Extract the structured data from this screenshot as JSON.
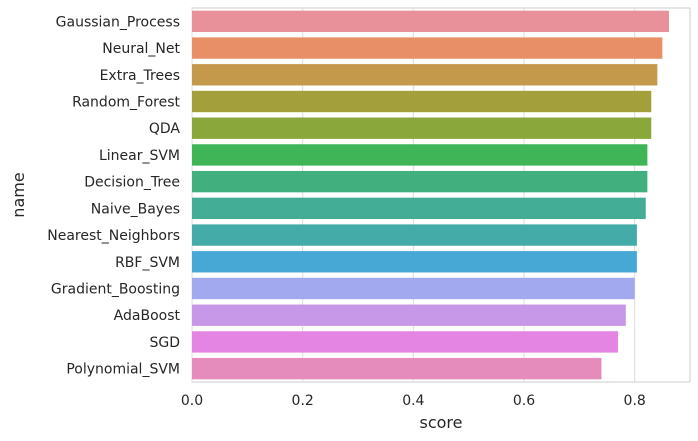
{
  "chart_data": {
    "type": "bar",
    "orientation": "horizontal",
    "title": "",
    "xlabel": "score",
    "ylabel": "name",
    "xlim": [
      0,
      0.9
    ],
    "xticks": [
      0.0,
      0.2,
      0.4,
      0.6,
      0.8
    ],
    "xtick_labels": [
      "0.0",
      "0.2",
      "0.4",
      "0.6",
      "0.8"
    ],
    "grid": true,
    "categories": [
      "Gaussian_Process",
      "Neural_Net",
      "Extra_Trees",
      "Random_Forest",
      "QDA",
      "Linear_SVM",
      "Decision_Tree",
      "Naive_Bayes",
      "Nearest_Neighbors",
      "RBF_SVM",
      "Gradient_Boosting",
      "AdaBoost",
      "SGD",
      "Polynomial_SVM"
    ],
    "values": [
      0.862,
      0.85,
      0.841,
      0.83,
      0.83,
      0.823,
      0.823,
      0.82,
      0.804,
      0.804,
      0.8,
      0.784,
      0.77,
      0.74
    ],
    "colors": [
      "#e8919b",
      "#e88f68",
      "#c5994b",
      "#a3a03c",
      "#8aa73b",
      "#3fb557",
      "#41b07e",
      "#43ad95",
      "#44aba9",
      "#47a8d5",
      "#a3a9ee",
      "#c798e8",
      "#e585e3",
      "#e68cbd"
    ]
  }
}
